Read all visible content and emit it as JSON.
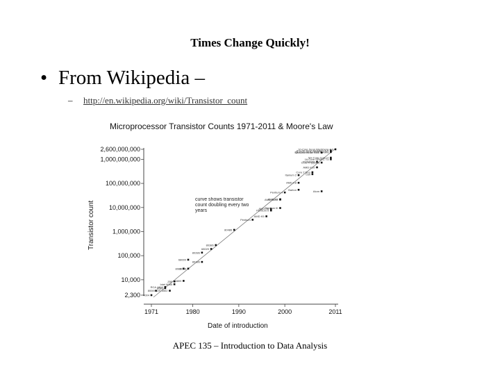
{
  "slide": {
    "title": "Times Change Quickly!",
    "bullet_symbol": "•",
    "bullet_text": "From Wikipedia –",
    "sub_dash": "–",
    "link": "http://en.wikipedia.org/wiki/Transistor_count",
    "footer": "APEC 135 – Introduction to Data Analysis"
  },
  "chart_data": {
    "type": "scatter",
    "title": "Microprocessor Transistor Counts 1971-2011 & Moore's Law",
    "xlabel": "Date of introduction",
    "ylabel": "Transistor count",
    "y_scale": "log",
    "x_ticks": [
      "1971",
      "1980",
      "1990",
      "2000",
      "2011"
    ],
    "y_ticks": [
      "2,600,000,000",
      "1,000,000,000",
      "100,000,000",
      "10,000,000",
      "1,000,000",
      "100,000",
      "10,000",
      "2,300"
    ],
    "annotation": "curve shows transistor count doubling every two years",
    "grid": false,
    "legend": "none",
    "points": [
      {
        "label": "4004",
        "x": 1971,
        "y": 2300
      },
      {
        "label": "8008",
        "x": 1972,
        "y": 3500
      },
      {
        "label": "8080",
        "x": 1974,
        "y": 4500
      },
      {
        "label": "RCA 1802",
        "x": 1974,
        "y": 5000
      },
      {
        "label": "MOS 6502",
        "x": 1975,
        "y": 3510
      },
      {
        "label": "Intel 8085",
        "x": 1976,
        "y": 6500
      },
      {
        "label": "Z80",
        "x": 1976,
        "y": 8500
      },
      {
        "label": "6809",
        "x": 1978,
        "y": 9000
      },
      {
        "label": "8086",
        "x": 1978,
        "y": 29000
      },
      {
        "label": "8088",
        "x": 1979,
        "y": 29000
      },
      {
        "label": "68000",
        "x": 1979,
        "y": 68000
      },
      {
        "label": "80186",
        "x": 1982,
        "y": 55000
      },
      {
        "label": "80286",
        "x": 1982,
        "y": 134000
      },
      {
        "label": "68020",
        "x": 1984,
        "y": 190000
      },
      {
        "label": "80386",
        "x": 1985,
        "y": 275000
      },
      {
        "label": "80486",
        "x": 1989,
        "y": 1180000
      },
      {
        "label": "Pentium",
        "x": 1993,
        "y": 3100000
      },
      {
        "label": "AMD K5",
        "x": 1996,
        "y": 4300000
      },
      {
        "label": "Pentium II",
        "x": 1997,
        "y": 7500000
      },
      {
        "label": "AMD K6",
        "x": 1997,
        "y": 8800000
      },
      {
        "label": "Pentium III",
        "x": 1999,
        "y": 9500000
      },
      {
        "label": "AMD K6-III",
        "x": 1999,
        "y": 21300000
      },
      {
        "label": "AMD K7",
        "x": 1999,
        "y": 22000000
      },
      {
        "label": "Pentium 4",
        "x": 2000,
        "y": 42000000
      },
      {
        "label": "Barton",
        "x": 2003,
        "y": 54300000
      },
      {
        "label": "AMD K8",
        "x": 2003,
        "y": 105900000
      },
      {
        "label": "Itanium 2",
        "x": 2003,
        "y": 220000000
      },
      {
        "label": "Core 2 Duo",
        "x": 2006,
        "y": 291000000
      },
      {
        "label": "Cell",
        "x": 2006,
        "y": 241000000
      },
      {
        "label": "Atom",
        "x": 2008,
        "y": 47000000
      },
      {
        "label": "AMD K10",
        "x": 2007,
        "y": 463000000
      },
      {
        "label": "POWER6",
        "x": 2007,
        "y": 789000000
      },
      {
        "label": "Quad-Core Itanium Tukwila",
        "x": 2010,
        "y": 2000000000
      },
      {
        "label": "Six-Core Xeon 7400",
        "x": 2008,
        "y": 1900000000
      },
      {
        "label": "Six-Core Core i7",
        "x": 2010,
        "y": 1170000000
      },
      {
        "label": "8-Core Xeon Nehalem-EX",
        "x": 2010,
        "y": 2300000000
      },
      {
        "label": "10-Core Xeon Westmere-EX",
        "x": 2011,
        "y": 2600000000
      },
      {
        "label": "16-Core SPARC T3",
        "x": 2010,
        "y": 1000000000
      },
      {
        "label": "Core i7 (Quad)",
        "x": 2008,
        "y": 731000000
      }
    ]
  }
}
